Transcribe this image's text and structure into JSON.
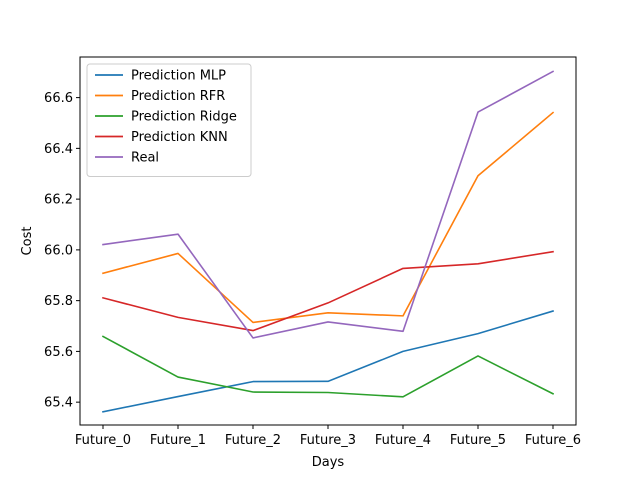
{
  "chart_data": {
    "type": "line",
    "title": "",
    "xlabel": "Days",
    "ylabel": "Cost",
    "categories": [
      "Future_0",
      "Future_1",
      "Future_2",
      "Future_3",
      "Future_4",
      "Future_5",
      "Future_6"
    ],
    "ylim": [
      65.31,
      66.76
    ],
    "yticks": [
      65.4,
      65.6,
      65.8,
      66.0,
      66.2,
      66.4,
      66.6
    ],
    "grid": false,
    "legend_position": "upper-left",
    "series": [
      {
        "name": "Prediction MLP",
        "color": "#1f77b4",
        "values": [
          65.362,
          65.422,
          65.481,
          65.482,
          65.6,
          65.67,
          65.759
        ]
      },
      {
        "name": "Prediction RFR",
        "color": "#ff7f0e",
        "values": [
          65.908,
          65.986,
          65.714,
          65.752,
          65.74,
          66.292,
          66.541
        ]
      },
      {
        "name": "Prediction Ridge",
        "color": "#2ca02c",
        "values": [
          65.659,
          65.499,
          65.44,
          65.438,
          65.421,
          65.582,
          65.433
        ]
      },
      {
        "name": "Prediction KNN",
        "color": "#d62728",
        "values": [
          65.811,
          65.734,
          65.682,
          65.791,
          65.927,
          65.945,
          65.993
        ]
      },
      {
        "name": "Real",
        "color": "#9467bd",
        "values": [
          66.021,
          66.062,
          65.653,
          65.716,
          65.679,
          66.543,
          66.703
        ]
      }
    ]
  }
}
